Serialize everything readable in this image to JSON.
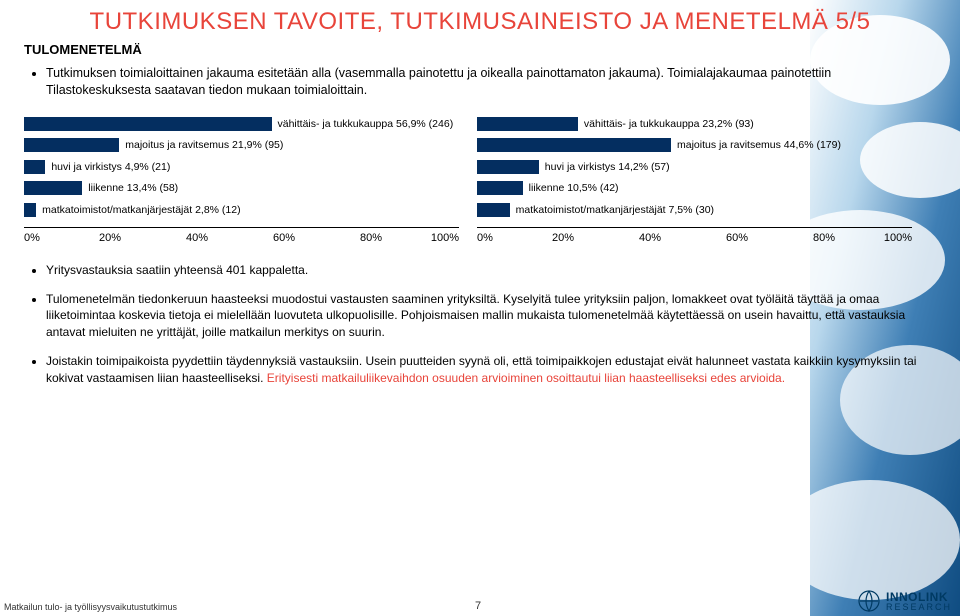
{
  "title": "TUTKIMUKSEN TAVOITE, TUTKIMUSAINEISTO JA MENETELMÄ 5/5",
  "title_color": "#e8443a",
  "subtitle_left": "TULOMENETELMÄ",
  "intro": [
    "Tutkimuksen toimialoittainen jakauma esitetään alla (vasemmalla painotettu ja oikealla painottamaton jakauma). Toimialajakaumaa painotettiin Tilastokeskuksesta saatavan tiedon mukaan toimialoittain."
  ],
  "charts": {
    "axis": {
      "ticks": [
        "0%",
        "20%",
        "40%",
        "60%",
        "80%",
        "100%"
      ],
      "max": 100
    },
    "bar_color": "#042e60",
    "label_fontsize": 10.5,
    "left": {
      "rows": [
        {
          "label": "vähittäis- ja tukkukauppa 56,9% (246)",
          "value": 56.9
        },
        {
          "label": "majoitus ja ravitsemus 21,9% (95)",
          "value": 21.9
        },
        {
          "label": "huvi ja virkistys 4,9% (21)",
          "value": 4.9
        },
        {
          "label": "liikenne 13,4% (58)",
          "value": 13.4
        },
        {
          "label": "matkatoimistot/matkanjärjestäjät 2,8% (12)",
          "value": 2.8
        }
      ]
    },
    "right": {
      "rows": [
        {
          "label": "vähittäis- ja tukkukauppa 23,2% (93)",
          "value": 23.2
        },
        {
          "label": "majoitus ja ravitsemus 44,6% (179)",
          "value": 44.6
        },
        {
          "label": "huvi ja virkistys 14,2% (57)",
          "value": 14.2
        },
        {
          "label": "liikenne 10,5% (42)",
          "value": 10.5
        },
        {
          "label": "matkatoimistot/matkanjärjestäjät 7,5% (30)",
          "value": 7.5
        }
      ]
    }
  },
  "bullets": [
    {
      "text": "Yritysvastauksia saatiin yhteensä 401 kappaletta."
    },
    {
      "text": "Tulomenetelmän tiedonkeruun haasteeksi muodostui vastausten saaminen yrityksiltä. Kyselyitä tulee yrityksiin paljon, lomakkeet ovat työläitä täyttää ja omaa liiketoimintaa koskevia tietoja ei mielellään luovuteta ulkopuolisille. Pohjoismaisen mallin mukaista tulomenetelmää käytettäessä on usein havaittu, että vastauksia antavat mieluiten ne yrittäjät, joille matkailun merkitys on suurin."
    },
    {
      "text": "Joistakin toimipaikoista pyydettiin täydennyksiä vastauksiin. Usein puutteiden syynä oli, että toimipaikkojen edustajat eivät halunneet vastata kaikkiin kysymyksiin tai kokivat vastaamisen liian haasteelliseksi. ",
      "highlight": "Erityisesti matkailuliikevaihdon osuuden arvioiminen osoittautui liian haasteelliseksi edes arvioida."
    }
  ],
  "footer_left": "Matkailun tulo- ja työllisyysvaikutustutkimus",
  "footer_page": "7",
  "footer_logo": {
    "main": "INNOLINK",
    "sub": "RESEARCH"
  },
  "bg_colors": [
    "#ffffff",
    "#84b8de",
    "#1a5f9e",
    "#d6e8f5"
  ]
}
